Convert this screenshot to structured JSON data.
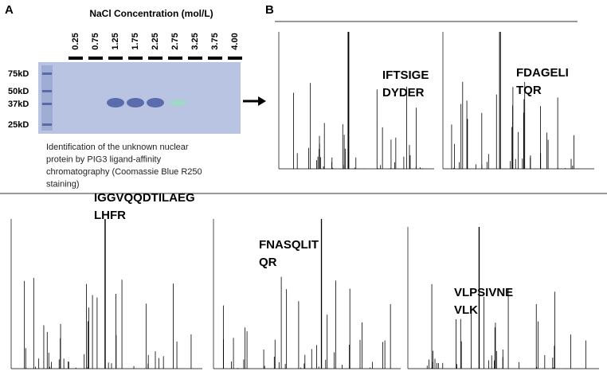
{
  "panel_a": {
    "label": "A",
    "title": "NaCl Concentration (mol/L)",
    "lanes": [
      "0.25",
      "0.75",
      "1.25",
      "1.75",
      "2.25",
      "2.75",
      "3.25",
      "3.75",
      "4.00"
    ],
    "markers": [
      "75kD",
      "50kD",
      "37kD",
      "25kD"
    ],
    "caption": [
      "Identification of the unknown nuclear",
      "protein by PIG3 ligand-affinity",
      "chromatography (Coomassie Blue R250",
      "staining)"
    ]
  },
  "panel_b": {
    "label": "B",
    "spectra": [
      {
        "peptide": [
          "IFTSIGE",
          "DYDER"
        ]
      },
      {
        "peptide": [
          "FDAGELI",
          "TQR"
        ]
      },
      {
        "peptide": [
          "IGGVQQDTILAEG",
          "LHFR"
        ]
      },
      {
        "peptide": [
          "FNASQLIT",
          "QR"
        ]
      },
      {
        "peptide": [
          "VLPSIVNE",
          "VLK"
        ]
      }
    ]
  }
}
